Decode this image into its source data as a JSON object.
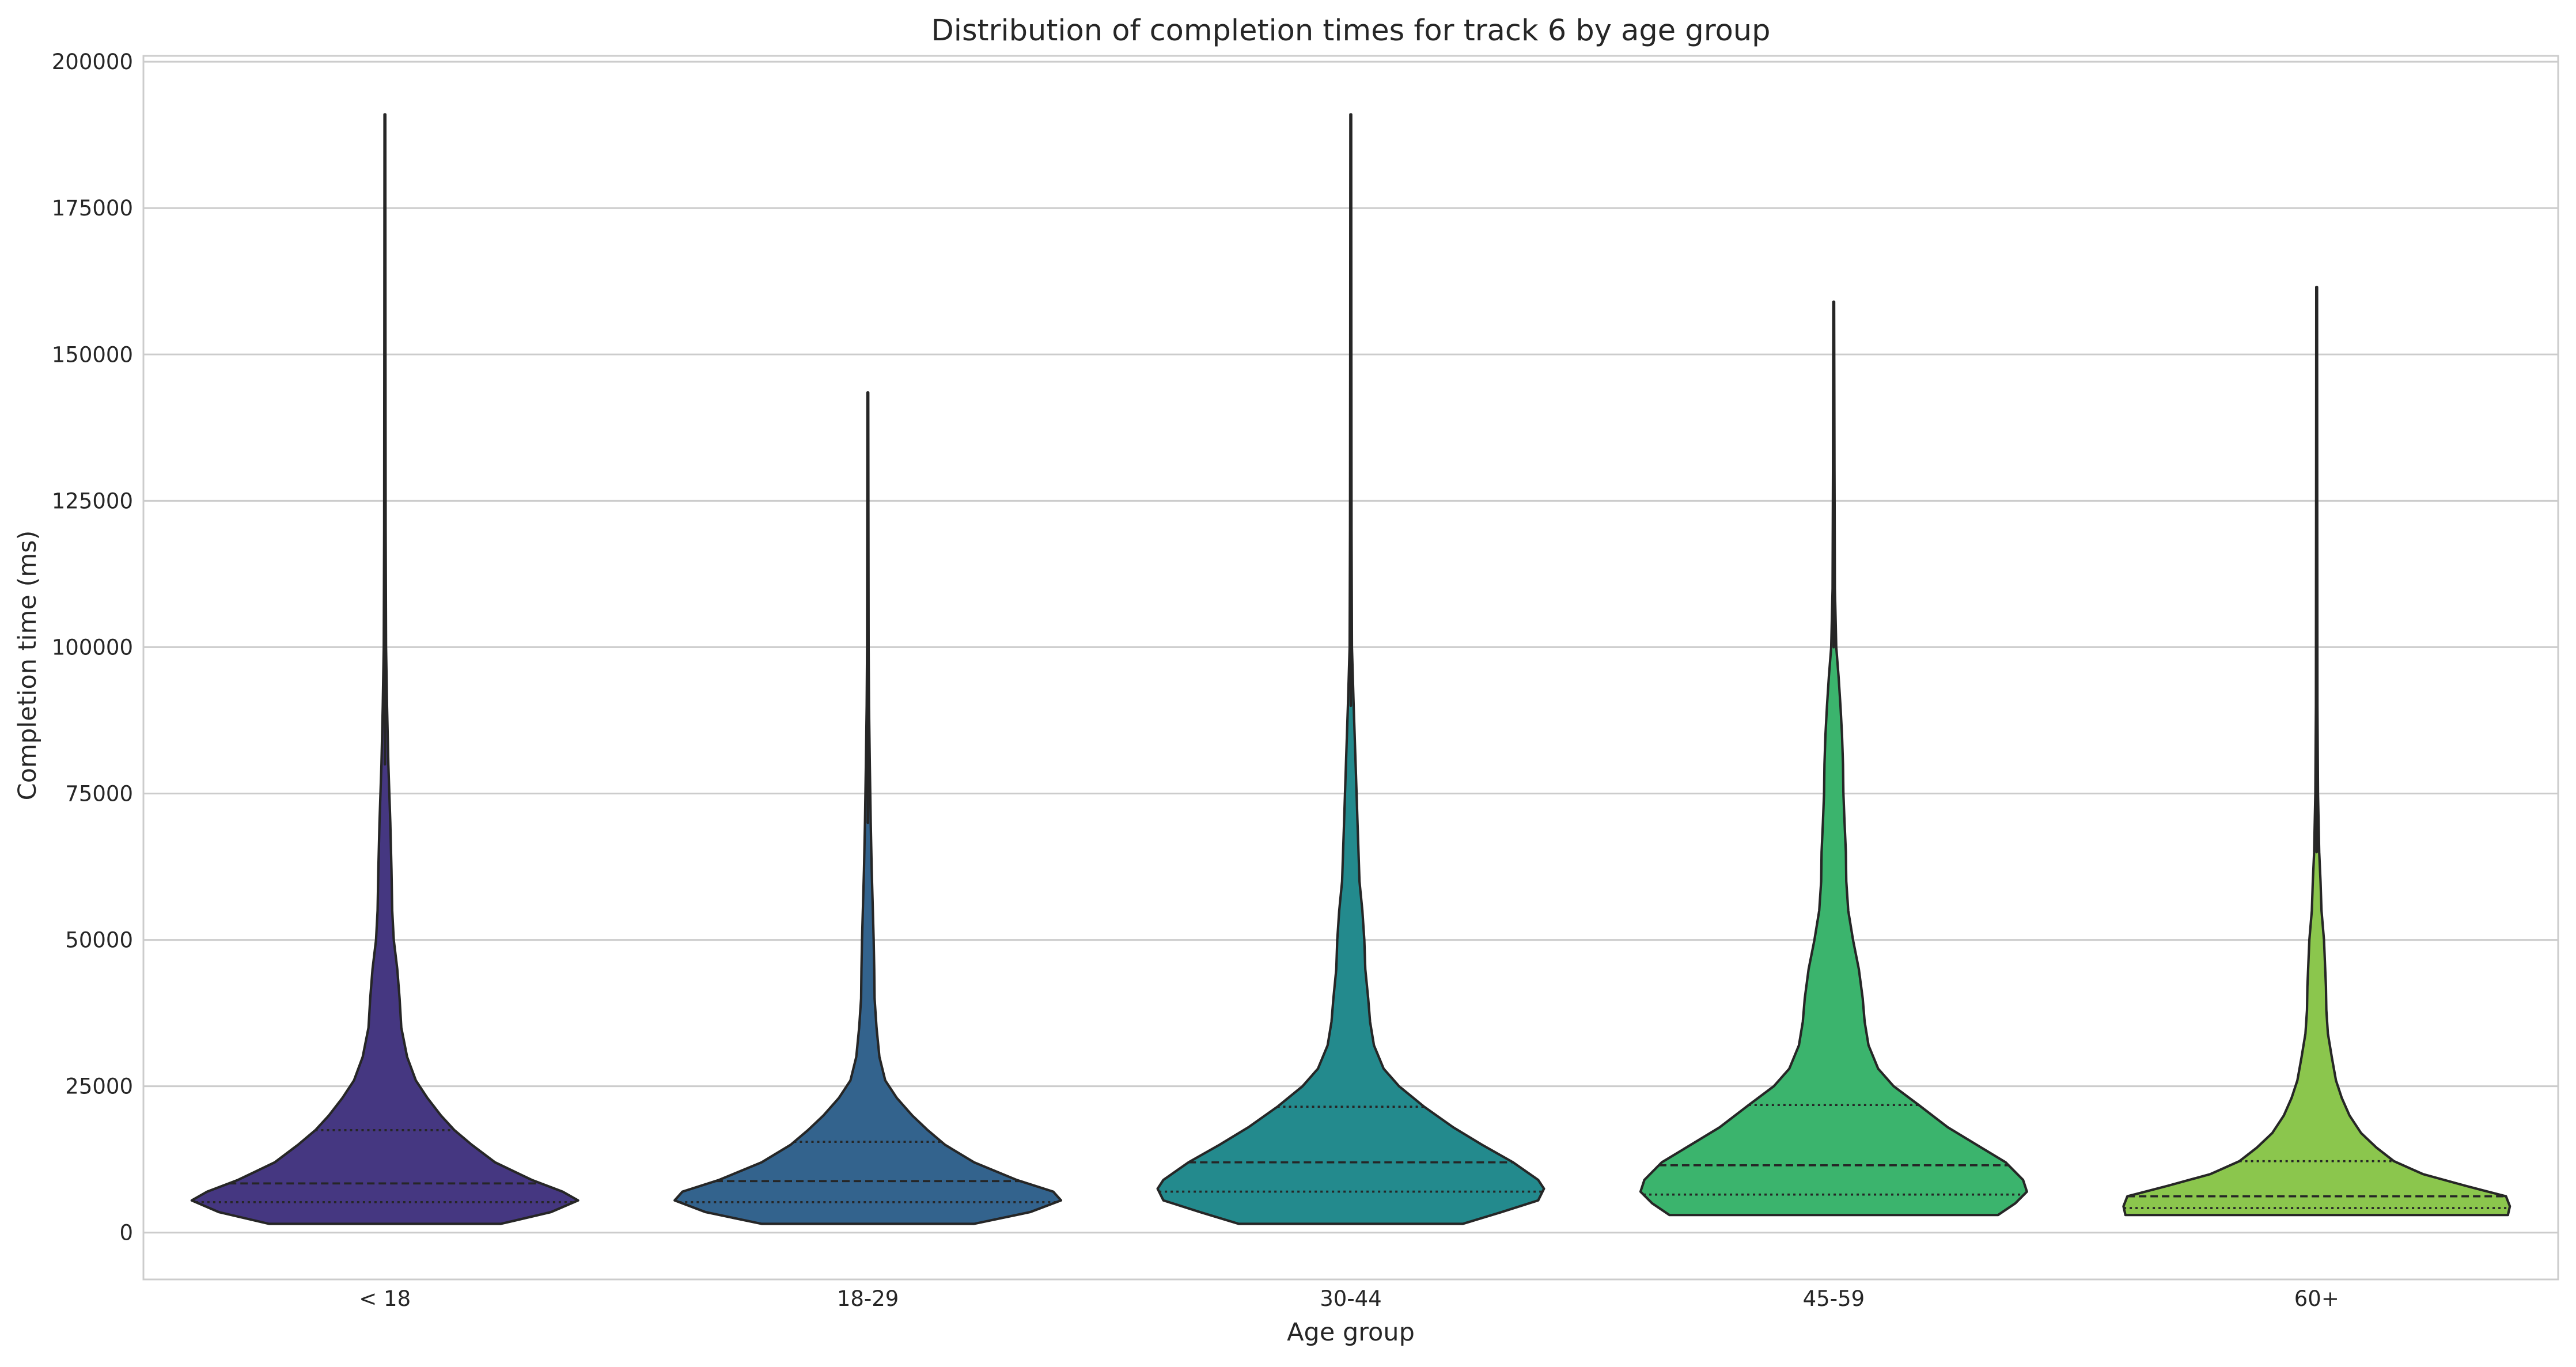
{
  "chart_data": {
    "type": "violin",
    "title": "Distribution of completion times for track 6 by age group",
    "xlabel": "Age group",
    "ylabel": "Completion time (ms)",
    "ylim": [
      -8000,
      201000
    ],
    "yticks": [
      0,
      25000,
      50000,
      75000,
      100000,
      125000,
      150000,
      175000,
      200000
    ],
    "grid": "horizontal",
    "inner": "quartile",
    "categories": [
      "< 18",
      "18-29",
      "30-44",
      "45-59",
      "60+"
    ],
    "colors": [
      "#453781",
      "#33638d",
      "#238a8d",
      "#3bb46d",
      "#8bc64d"
    ],
    "series": [
      {
        "category": "< 18",
        "min": 1500,
        "max": 191000,
        "q1": 5200,
        "median": 8400,
        "q3": 17500,
        "density": [
          [
            1500,
            0.6
          ],
          [
            3500,
            0.86
          ],
          [
            5500,
            1.0
          ],
          [
            7000,
            0.92
          ],
          [
            9000,
            0.76
          ],
          [
            12000,
            0.57
          ],
          [
            15000,
            0.45
          ],
          [
            17500,
            0.36
          ],
          [
            20000,
            0.29
          ],
          [
            23000,
            0.22
          ],
          [
            26000,
            0.16
          ],
          [
            30000,
            0.115
          ],
          [
            35000,
            0.085
          ],
          [
            40000,
            0.076
          ],
          [
            45000,
            0.064
          ],
          [
            50000,
            0.046
          ],
          [
            55000,
            0.038
          ],
          [
            62000,
            0.034
          ],
          [
            70000,
            0.028
          ],
          [
            80000,
            0.018
          ],
          [
            90000,
            0.011
          ],
          [
            100000,
            0.006
          ],
          [
            120000,
            0.004
          ],
          [
            150000,
            0.003
          ],
          [
            191000,
            0.002
          ]
        ]
      },
      {
        "category": "18-29",
        "min": 1500,
        "max": 143500,
        "q1": 5200,
        "median": 8800,
        "q3": 15500,
        "density": [
          [
            1500,
            0.55
          ],
          [
            3500,
            0.84
          ],
          [
            5500,
            1.0
          ],
          [
            7000,
            0.96
          ],
          [
            9000,
            0.77
          ],
          [
            12000,
            0.55
          ],
          [
            15000,
            0.4
          ],
          [
            17500,
            0.31
          ],
          [
            20000,
            0.23
          ],
          [
            23000,
            0.15
          ],
          [
            26000,
            0.09
          ],
          [
            30000,
            0.06
          ],
          [
            35000,
            0.045
          ],
          [
            40000,
            0.035
          ],
          [
            45000,
            0.033
          ],
          [
            50000,
            0.03
          ],
          [
            55000,
            0.026
          ],
          [
            62000,
            0.02
          ],
          [
            70000,
            0.015
          ],
          [
            80000,
            0.01
          ],
          [
            90000,
            0.006
          ],
          [
            100000,
            0.004
          ],
          [
            120000,
            0.003
          ],
          [
            143500,
            0.002
          ]
        ]
      },
      {
        "category": "30-44",
        "min": 1500,
        "max": 191000,
        "q1": 7000,
        "median": 12000,
        "q3": 21500,
        "density": [
          [
            1500,
            0.58
          ],
          [
            3500,
            0.78
          ],
          [
            5500,
            0.97
          ],
          [
            7500,
            1.0
          ],
          [
            9000,
            0.97
          ],
          [
            12000,
            0.84
          ],
          [
            15000,
            0.68
          ],
          [
            18000,
            0.53
          ],
          [
            21500,
            0.38
          ],
          [
            25000,
            0.25
          ],
          [
            28000,
            0.17
          ],
          [
            32000,
            0.12
          ],
          [
            36000,
            0.1
          ],
          [
            40000,
            0.09
          ],
          [
            45000,
            0.075
          ],
          [
            50000,
            0.07
          ],
          [
            55000,
            0.06
          ],
          [
            60000,
            0.045
          ],
          [
            65000,
            0.04
          ],
          [
            70000,
            0.035
          ],
          [
            80000,
            0.025
          ],
          [
            90000,
            0.015
          ],
          [
            100000,
            0.006
          ],
          [
            120000,
            0.004
          ],
          [
            150000,
            0.003
          ],
          [
            191000,
            0.002
          ]
        ]
      },
      {
        "category": "45-59",
        "min": 3000,
        "max": 159000,
        "q1": 6500,
        "median": 11500,
        "q3": 21800,
        "density": [
          [
            3000,
            0.85
          ],
          [
            5000,
            0.94
          ],
          [
            7000,
            1.0
          ],
          [
            9000,
            0.98
          ],
          [
            12000,
            0.89
          ],
          [
            15000,
            0.74
          ],
          [
            18000,
            0.59
          ],
          [
            21800,
            0.44
          ],
          [
            25000,
            0.31
          ],
          [
            28000,
            0.23
          ],
          [
            32000,
            0.18
          ],
          [
            36000,
            0.16
          ],
          [
            40000,
            0.15
          ],
          [
            45000,
            0.13
          ],
          [
            50000,
            0.1
          ],
          [
            55000,
            0.075
          ],
          [
            60000,
            0.065
          ],
          [
            65000,
            0.063
          ],
          [
            70000,
            0.056
          ],
          [
            75000,
            0.05
          ],
          [
            80000,
            0.048
          ],
          [
            85000,
            0.043
          ],
          [
            90000,
            0.035
          ],
          [
            95000,
            0.025
          ],
          [
            100000,
            0.013
          ],
          [
            110000,
            0.006
          ],
          [
            130000,
            0.004
          ],
          [
            159000,
            0.002
          ]
        ]
      },
      {
        "category": "60+",
        "min": 3000,
        "max": 161500,
        "q1": 4200,
        "median": 6200,
        "q3": 12200,
        "density": [
          [
            3000,
            0.99
          ],
          [
            4500,
            1.0
          ],
          [
            6200,
            0.98
          ],
          [
            8000,
            0.77
          ],
          [
            10000,
            0.55
          ],
          [
            12200,
            0.4
          ],
          [
            14500,
            0.31
          ],
          [
            17000,
            0.23
          ],
          [
            20000,
            0.17
          ],
          [
            23000,
            0.13
          ],
          [
            26000,
            0.1
          ],
          [
            30000,
            0.078
          ],
          [
            34000,
            0.058
          ],
          [
            38000,
            0.05
          ],
          [
            42000,
            0.048
          ],
          [
            46000,
            0.043
          ],
          [
            50000,
            0.038
          ],
          [
            55000,
            0.025
          ],
          [
            60000,
            0.02
          ],
          [
            65000,
            0.013
          ],
          [
            75000,
            0.007
          ],
          [
            90000,
            0.004
          ],
          [
            120000,
            0.003
          ],
          [
            161500,
            0.002
          ]
        ]
      }
    ]
  }
}
